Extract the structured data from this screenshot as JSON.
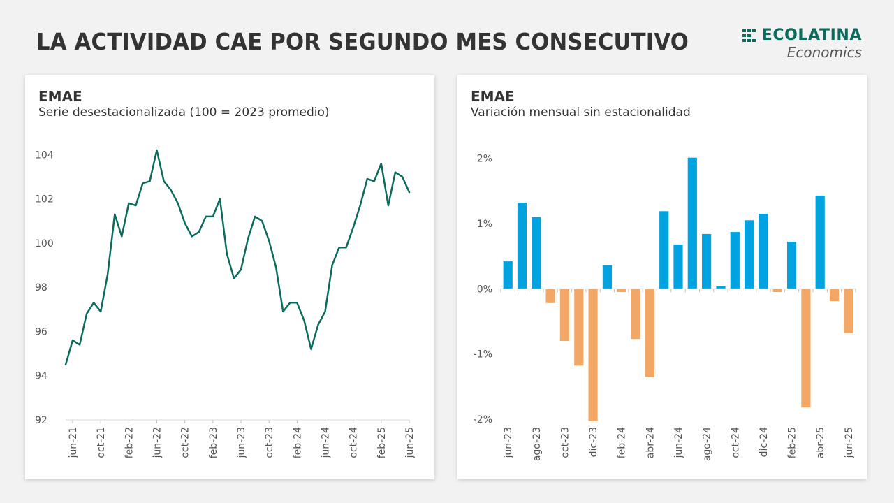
{
  "header": {
    "title": "LA ACTIVIDAD CAE POR SEGUNDO MES CONSECUTIVO",
    "brand_name": "ECOLATINA",
    "brand_sub": "Economics",
    "brand_color": "#0b6b5d"
  },
  "charts": [
    {
      "title": "EMAE",
      "subtitle": "Serie desestacionalizada (100 = 2023 promedio)"
    },
    {
      "title": "EMAE",
      "subtitle": "Variación mensual sin estacionalidad"
    }
  ],
  "chart_data": [
    {
      "type": "line",
      "title": "EMAE",
      "subtitle": "Serie desestacionalizada (100 = 2023 promedio)",
      "color": "#0b6b5d",
      "grid": false,
      "ylim": [
        92,
        104.8
      ],
      "yticks": [
        92,
        94,
        96,
        98,
        100,
        102,
        104
      ],
      "xticks": [
        "jun-21",
        "oct-21",
        "feb-22",
        "jun-22",
        "oct-22",
        "feb-23",
        "jun-23",
        "oct-23",
        "feb-24",
        "jun-24",
        "oct-24",
        "feb-25",
        "jun-25"
      ],
      "x": [
        "may-21",
        "jun-21",
        "jul-21",
        "ago-21",
        "sep-21",
        "oct-21",
        "nov-21",
        "dic-21",
        "ene-22",
        "feb-22",
        "mar-22",
        "abr-22",
        "may-22",
        "jun-22",
        "jul-22",
        "ago-22",
        "sep-22",
        "oct-22",
        "nov-22",
        "dic-22",
        "ene-23",
        "feb-23",
        "mar-23",
        "abr-23",
        "may-23",
        "jun-23",
        "jul-23",
        "ago-23",
        "sep-23",
        "oct-23",
        "nov-23",
        "dic-23",
        "ene-24",
        "feb-24",
        "mar-24",
        "abr-24",
        "may-24",
        "jun-24",
        "jul-24",
        "ago-24",
        "sep-24",
        "oct-24",
        "nov-24",
        "dic-24",
        "ene-25",
        "feb-25",
        "mar-25",
        "abr-25",
        "may-25",
        "jun-25"
      ],
      "values": [
        94.5,
        95.6,
        95.4,
        96.8,
        97.3,
        96.9,
        98.6,
        101.3,
        100.3,
        101.8,
        101.7,
        102.7,
        102.8,
        104.2,
        102.8,
        102.4,
        101.8,
        100.9,
        100.3,
        100.5,
        101.2,
        101.2,
        102.0,
        99.5,
        98.4,
        98.8,
        100.2,
        101.2,
        101.0,
        100.1,
        98.9,
        96.9,
        97.3,
        97.3,
        96.5,
        95.2,
        96.3,
        96.9,
        99.0,
        99.8,
        99.8,
        100.7,
        101.7,
        102.9,
        102.8,
        103.6,
        101.7,
        103.2,
        103.0,
        102.3
      ]
    },
    {
      "type": "bar",
      "title": "EMAE",
      "subtitle": "Variación mensual sin estacionalidad",
      "positive_color": "#00a3e0",
      "negative_color": "#f2a766",
      "grid": false,
      "ylim": [
        -2,
        2.2
      ],
      "yticks": [
        -2,
        -1,
        0,
        1,
        2
      ],
      "ytick_labels": [
        "-2%",
        "-1%",
        "0%",
        "1%",
        "2%"
      ],
      "xticks": [
        "jun-23",
        "ago-23",
        "oct-23",
        "dic-23",
        "feb-24",
        "abr-24",
        "jun-24",
        "ago-24",
        "oct-24",
        "dic-24",
        "feb-25",
        "abr-25",
        "jun-25"
      ],
      "categories": [
        "jun-23",
        "jul-23",
        "ago-23",
        "sep-23",
        "oct-23",
        "nov-23",
        "dic-23",
        "ene-24",
        "feb-24",
        "mar-24",
        "abr-24",
        "may-24",
        "jun-24",
        "jul-24",
        "ago-24",
        "sep-24",
        "oct-24",
        "nov-24",
        "dic-24",
        "ene-25",
        "feb-25",
        "mar-25",
        "abr-25",
        "may-25",
        "jun-25"
      ],
      "values": [
        0.42,
        1.32,
        1.1,
        -0.22,
        -0.8,
        -1.18,
        -2.03,
        0.36,
        -0.05,
        -0.77,
        -1.35,
        1.19,
        0.68,
        2.01,
        0.84,
        0.04,
        0.87,
        1.05,
        1.15,
        -0.05,
        0.72,
        -1.82,
        1.43,
        -0.19,
        -0.68
      ]
    }
  ]
}
